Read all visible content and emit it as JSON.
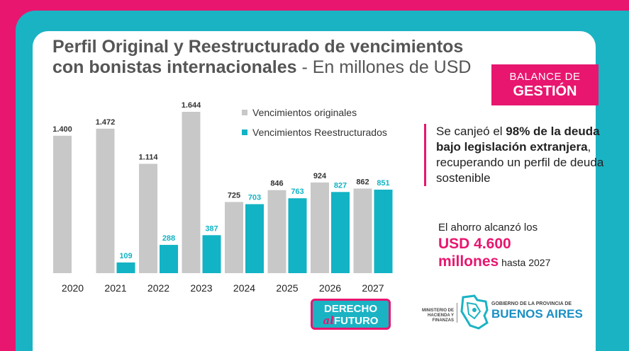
{
  "header": {
    "title": "Perfil Original y Reestructurado de vencimientos con bonistas internacionales",
    "subtitle": "- En millones de USD"
  },
  "badge": {
    "line1": "BALANCE DE",
    "line2": "GESTIÓN"
  },
  "chart_data": {
    "type": "bar",
    "categories": [
      "2020",
      "2021",
      "2022",
      "2023",
      "2024",
      "2025",
      "2026",
      "2027"
    ],
    "series": [
      {
        "name": "Vencimientos originales",
        "color": "#c8c8c8",
        "label_color": "#333333",
        "values": [
          1400,
          1472,
          1114,
          1644,
          725,
          846,
          924,
          862
        ],
        "labels": [
          "1.400",
          "1.472",
          "1.114",
          "1.644",
          "725",
          "846",
          "924",
          "862"
        ]
      },
      {
        "name": "Vencimientos Reestructurados",
        "color": "#12b3c4",
        "label_color": "#12b3c4",
        "values": [
          0,
          109,
          288,
          387,
          703,
          763,
          827,
          851
        ],
        "labels": [
          "",
          "109",
          "288",
          "387",
          "703",
          "763",
          "827",
          "851"
        ]
      }
    ],
    "ylim": [
      0,
      1644
    ],
    "grid": false,
    "legend": "top-right"
  },
  "right_panel": {
    "text_a": "Se canjeó el ",
    "text_b": "98% de la deuda bajo legislación extranjera",
    "text_c": ", recuperando un perfil de deuda sostenible"
  },
  "savings": {
    "line1": "El ahorro alcanzó los",
    "amount": "USD 4.600",
    "unit": "millones",
    "tail": " hasta 2027"
  },
  "derecho_logo": {
    "line1": "DERECHO",
    "al": "al",
    "futuro": "FUTURO"
  },
  "ministerio": "MINISTERIO DE HACIENDA Y FINANZAS",
  "pba": {
    "line1": "GOBIERNO DE LA PROVINCIA DE",
    "line2": "BUENOS AIRES"
  }
}
